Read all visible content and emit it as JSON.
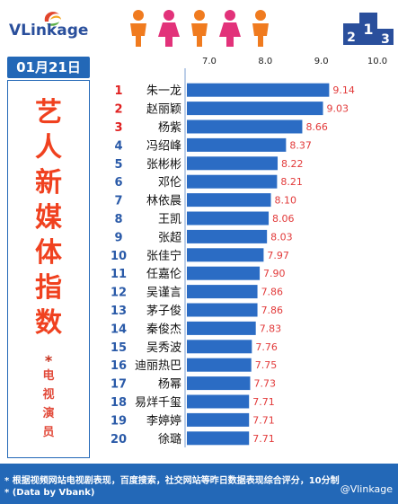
{
  "header": {
    "logo_text": "VLinkage",
    "podium_numbers": [
      "2",
      "1",
      "3"
    ]
  },
  "date": "01月21日",
  "title_chars": [
    "艺",
    "人",
    "新",
    "媒",
    "体",
    "指",
    "数"
  ],
  "star": "*",
  "subtitle_chars": [
    "电",
    "视",
    "演",
    "员"
  ],
  "footer": {
    "note1": "* 根据视频网站电视剧表现，百度搜索，社交网站等昨日数据表现综合评分，10分制",
    "note2": "* (Data by Vbank)",
    "weibo": "@Vlinkage"
  },
  "colors": {
    "bar": "#2b6cc4",
    "value_text": "#e23a3a",
    "rank_top3": "#e02020",
    "rank_other": "#2a5aa8",
    "accent_blue": "#2368b7",
    "title_red": "#f0411f"
  },
  "chart_data": {
    "type": "bar",
    "orientation": "horizontal",
    "xlim": [
      6.6,
      10.0
    ],
    "xticks": [
      "7.0",
      "8.0",
      "9.0",
      "10.0"
    ],
    "xtick_values": [
      7.0,
      8.0,
      9.0,
      10.0
    ],
    "ranks": [
      "1",
      "2",
      "3",
      "4",
      "5",
      "6",
      "7",
      "8",
      "9",
      "10",
      "11",
      "12",
      "13",
      "14",
      "15",
      "16",
      "17",
      "18",
      "19",
      "20"
    ],
    "categories": [
      "朱一龙",
      "赵丽颖",
      "杨紫",
      "冯绍峰",
      "张彬彬",
      "邓伦",
      "林依晨",
      "王凯",
      "张超",
      "张佳宁",
      "任嘉伦",
      "吴谨言",
      "茅子俊",
      "秦俊杰",
      "吴秀波",
      "迪丽热巴",
      "杨幂",
      "易烊千玺",
      "李婷婷",
      "徐璐"
    ],
    "values": [
      9.14,
      9.03,
      8.66,
      8.37,
      8.22,
      8.21,
      8.1,
      8.06,
      8.03,
      7.97,
      7.9,
      7.86,
      7.86,
      7.83,
      7.76,
      7.75,
      7.73,
      7.71,
      7.71,
      7.71
    ],
    "value_labels": [
      "9.14",
      "9.03",
      "8.66",
      "8.37",
      "8.22",
      "8.21",
      "8.10",
      "8.06",
      "8.03",
      "7.97",
      "7.90",
      "7.86",
      "7.86",
      "7.83",
      "7.76",
      "7.75",
      "7.73",
      "7.71",
      "7.71",
      "7.71"
    ]
  }
}
